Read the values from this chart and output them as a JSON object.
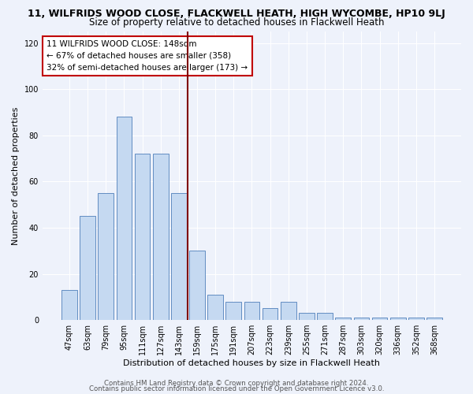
{
  "title_line1": "11, WILFRIDS WOOD CLOSE, FLACKWELL HEATH, HIGH WYCOMBE, HP10 9LJ",
  "title_line2": "Size of property relative to detached houses in Flackwell Heath",
  "xlabel": "Distribution of detached houses by size in Flackwell Heath",
  "ylabel": "Number of detached properties",
  "categories": [
    "47sqm",
    "63sqm",
    "79sqm",
    "95sqm",
    "111sqm",
    "127sqm",
    "143sqm",
    "159sqm",
    "175sqm",
    "191sqm",
    "207sqm",
    "223sqm",
    "239sqm",
    "255sqm",
    "271sqm",
    "287sqm",
    "303sqm",
    "320sqm",
    "336sqm",
    "352sqm",
    "368sqm"
  ],
  "values": [
    13,
    45,
    55,
    88,
    72,
    72,
    55,
    30,
    11,
    8,
    8,
    5,
    8,
    3,
    3,
    1,
    1,
    1,
    1,
    1,
    1
  ],
  "bar_color": "#c5d9f1",
  "bar_edge_color": "#4f7fba",
  "background_color": "#eef2fb",
  "annotation_text": "11 WILFRIDS WOOD CLOSE: 148sqm\n← 67% of detached houses are smaller (358)\n32% of semi-detached houses are larger (173) →",
  "annotation_box_color": "#ffffff",
  "annotation_box_edge": "#c00000",
  "vline_color": "#800000",
  "vline_x": 6.5,
  "ylim": [
    0,
    125
  ],
  "yticks": [
    0,
    20,
    40,
    60,
    80,
    100,
    120
  ],
  "footer_line1": "Contains HM Land Registry data © Crown copyright and database right 2024.",
  "footer_line2": "Contains public sector information licensed under the Open Government Licence v3.0.",
  "title_fontsize": 9,
  "subtitle_fontsize": 8.5,
  "xlabel_fontsize": 8,
  "ylabel_fontsize": 8,
  "tick_fontsize": 7,
  "annotation_fontsize": 7.5,
  "footer_fontsize": 6.2
}
